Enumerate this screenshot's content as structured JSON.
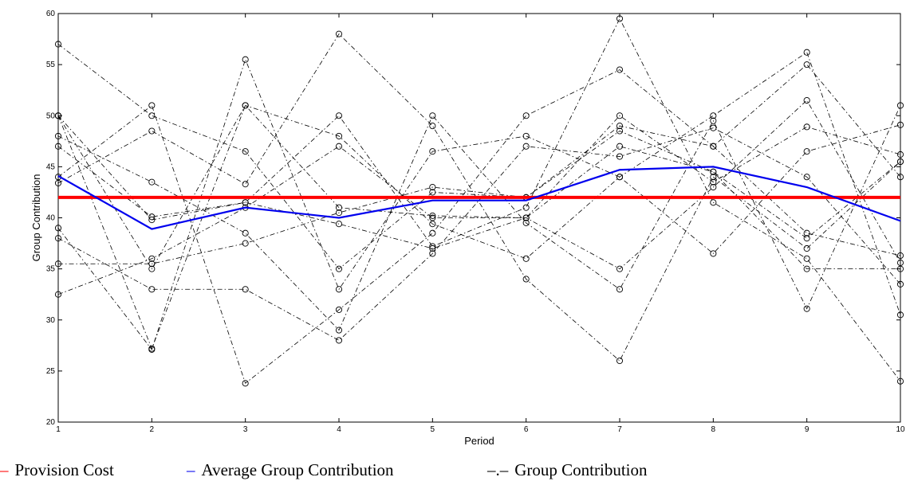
{
  "chart_data": {
    "type": "line",
    "xlabel": "Period",
    "ylabel": "Group Contribution",
    "xlim": [
      1,
      10
    ],
    "ylim": [
      20,
      60
    ],
    "x_ticks": [
      "1",
      "2",
      "3",
      "4",
      "5",
      "6",
      "7",
      "8",
      "9",
      "10"
    ],
    "y_ticks": [
      "20",
      "25",
      "30",
      "35",
      "40",
      "45",
      "50",
      "55",
      "60"
    ],
    "grid": false,
    "x": [
      1,
      2,
      3,
      4,
      5,
      6,
      7,
      8,
      9,
      10
    ],
    "provision_cost": {
      "value": 42,
      "color": "#ff0000"
    },
    "average": {
      "values": [
        44.1,
        38.9,
        41.0,
        40.0,
        41.7,
        41.7,
        44.7,
        45.0,
        43.0,
        39.7
      ],
      "color": "#0000ee"
    },
    "groups": [
      [
        57,
        50,
        46.5,
        35,
        42.5,
        42,
        49,
        47,
        38.5,
        36.3
      ],
      [
        50,
        35,
        51,
        48,
        39.4,
        36,
        44,
        50,
        56.2,
        30.5
      ],
      [
        48,
        43.5,
        38.5,
        29,
        50,
        39.5,
        33,
        49.5,
        31.1,
        51
      ],
      [
        47,
        40.1,
        41.5,
        50,
        37.2,
        41,
        59.5,
        41.5,
        36,
        24
      ],
      [
        44,
        51,
        23.8,
        31,
        38.5,
        50,
        54.5,
        47,
        55,
        44
      ],
      [
        43.4,
        48.5,
        43.3,
        58,
        49,
        34,
        26,
        44,
        37,
        45.5
      ],
      [
        39,
        27.1,
        55.5,
        33,
        46.5,
        48,
        44,
        36.5,
        46.5,
        49.1
      ],
      [
        38,
        33,
        33,
        28,
        36.5,
        47,
        46,
        48.8,
        44,
        33.5
      ],
      [
        35.5,
        35.5,
        37.5,
        40.5,
        43,
        42,
        48.5,
        44.5,
        35,
        35
      ],
      [
        32.5,
        36,
        41,
        47,
        40,
        40,
        35,
        43,
        51.5,
        35.6
      ],
      [
        50,
        27.2,
        51,
        41,
        40.2,
        40,
        50,
        43.5,
        48.9,
        46.2
      ],
      [
        50,
        39.8,
        41.5,
        39.4,
        37,
        40,
        47,
        44.5,
        38,
        45.5
      ]
    ],
    "legend": {
      "placement": "bottom",
      "items": [
        {
          "symbol": "–",
          "label": "Provision Cost",
          "color": "#ff0000"
        },
        {
          "symbol": "–",
          "label": "Average Group Contribution",
          "color": "#0000ee"
        },
        {
          "symbol": "–.–",
          "label": "Group Contribution",
          "color": "#000000"
        }
      ]
    }
  }
}
